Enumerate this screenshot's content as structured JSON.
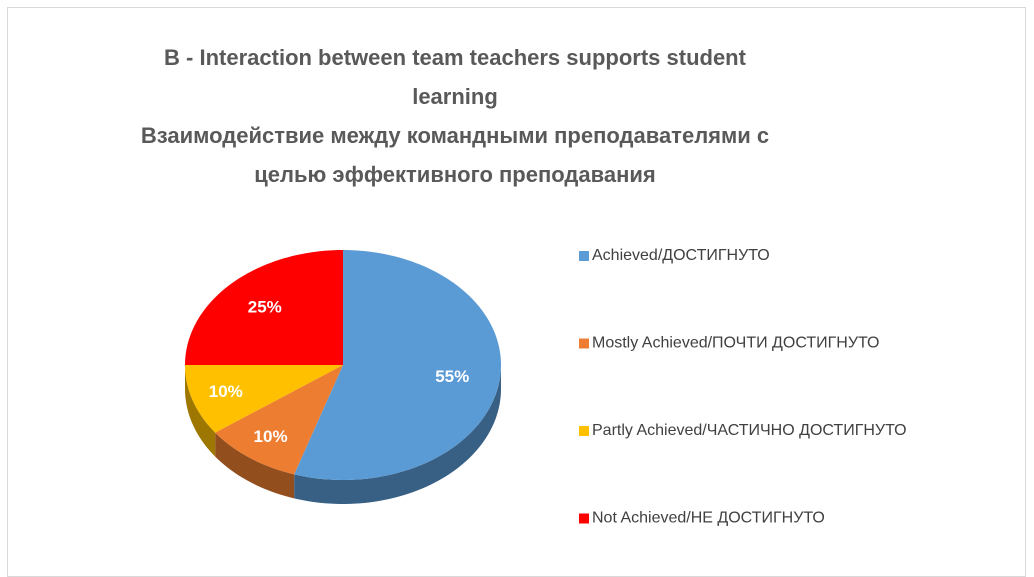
{
  "chart_data": {
    "type": "pie",
    "title": "B - Interaction between team teachers supports student learning",
    "subtitle": "Взаимодействие между командными преподавателями  с целью эффективного преподавания",
    "categories": [
      "Achieved/ДОСТИГНУТО",
      "Mostly Achieved/ПОЧТИ ДОСТИГНУТО",
      "Partly Achieved/ЧАСТИЧНО ДОСТИГНУТО",
      "Not Achieved/НЕ ДОСТИГНУТО"
    ],
    "values": [
      55,
      10,
      10,
      25
    ],
    "value_labels": [
      "55%",
      "10%",
      "10%",
      "25%"
    ],
    "colors": [
      "#5b9bd5",
      "#ed7d31",
      "#ffc000",
      "#ff0000"
    ],
    "legend": "right"
  }
}
